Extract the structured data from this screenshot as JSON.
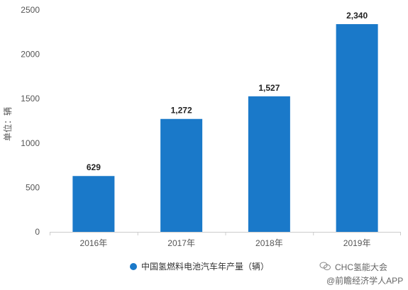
{
  "chart_data": {
    "type": "bar",
    "categories": [
      "2016年",
      "2017年",
      "2018年",
      "2019年"
    ],
    "series": [
      {
        "name": "中国氢燃料电池汽车年产量（辆）",
        "values": [
          629,
          1272,
          1527,
          2340
        ]
      }
    ],
    "data_labels": [
      "629",
      "1,272",
      "1,527",
      "2,340"
    ],
    "ylabel": "单位：辆",
    "ylim": [
      0,
      2500
    ],
    "yticks": [
      0,
      500,
      1000,
      1500,
      2000,
      2500
    ],
    "grid": false,
    "legend_position": "bottom-center",
    "bar_color": "#1a79c9"
  },
  "watermark": {
    "line1": "CHC氢能大会",
    "line2": "@前瞻经济学人APP"
  }
}
